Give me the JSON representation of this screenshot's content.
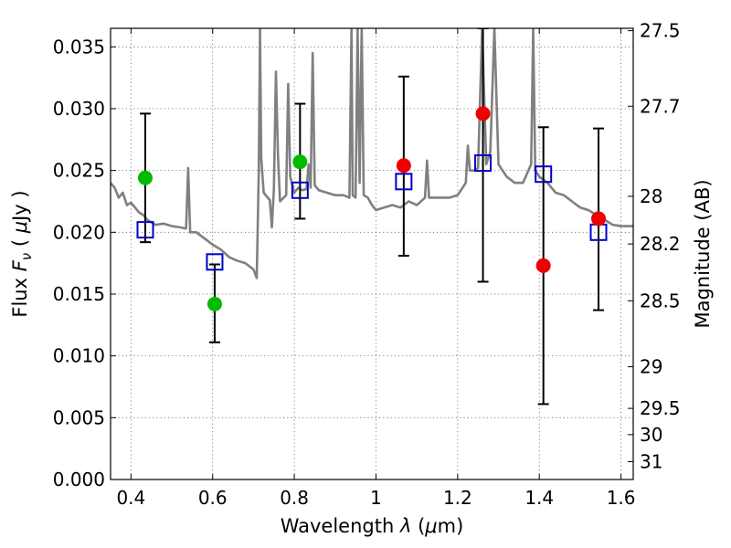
{
  "chart_data": {
    "type": "scatter",
    "title": "",
    "xlabel": "Wavelength  λ (μm)",
    "ylabel": "Flux  F_ν  ( μJy )",
    "ylabel_parts": {
      "a": "Flux  ",
      "b": "F",
      "c": "ν",
      "d": "  ( ",
      "e": "μ",
      "f": "Jy )"
    },
    "xlabel_parts": {
      "a": "Wavelength  ",
      "b": "λ",
      "c": " (",
      "d": "μ",
      "e": "m)"
    },
    "y2label": "Magnitude (AB)",
    "xlim": [
      0.35,
      1.63
    ],
    "ylim": [
      0.0,
      0.0365
    ],
    "grid": true,
    "x_ticks": [
      0.4,
      0.6,
      0.8,
      1.0,
      1.2,
      1.4,
      1.6
    ],
    "x_tick_labels": [
      "0.4",
      "0.6",
      "0.8",
      "1",
      "1.2",
      "1.4",
      "1.6"
    ],
    "y_ticks": [
      0.0,
      0.005,
      0.01,
      0.015,
      0.02,
      0.025,
      0.03,
      0.035
    ],
    "y_tick_labels": [
      "0.000",
      "0.005",
      "0.010",
      "0.015",
      "0.020",
      "0.025",
      "0.030",
      "0.035"
    ],
    "mag_ticks": [
      27.5,
      27.7,
      28,
      28.2,
      28.5,
      29,
      29.5,
      30,
      31
    ],
    "mag_tick_labels": [
      "27.5",
      "27.7",
      "28",
      "28.2",
      "28.5",
      "29",
      "29.5",
      "30",
      "31"
    ],
    "series": [
      {
        "marker": "line",
        "color": "#808080",
        "points": [
          [
            0.35,
            0.024
          ],
          [
            0.36,
            0.0236
          ],
          [
            0.37,
            0.0228
          ],
          [
            0.38,
            0.0232
          ],
          [
            0.39,
            0.0222
          ],
          [
            0.4,
            0.0224
          ],
          [
            0.41,
            0.022
          ],
          [
            0.42,
            0.0216
          ],
          [
            0.43,
            0.0214
          ],
          [
            0.44,
            0.021
          ],
          [
            0.46,
            0.0206
          ],
          [
            0.48,
            0.0207
          ],
          [
            0.5,
            0.0205
          ],
          [
            0.52,
            0.0204
          ],
          [
            0.535,
            0.0203
          ],
          [
            0.54,
            0.0252
          ],
          [
            0.545,
            0.02
          ],
          [
            0.56,
            0.02
          ],
          [
            0.58,
            0.0195
          ],
          [
            0.6,
            0.019
          ],
          [
            0.62,
            0.0186
          ],
          [
            0.64,
            0.018
          ],
          [
            0.66,
            0.0177
          ],
          [
            0.68,
            0.0175
          ],
          [
            0.7,
            0.017
          ],
          [
            0.708,
            0.0163
          ],
          [
            0.713,
            0.025
          ],
          [
            0.716,
            0.0365
          ],
          [
            0.719,
            0.026
          ],
          [
            0.725,
            0.0232
          ],
          [
            0.74,
            0.0226
          ],
          [
            0.745,
            0.0204
          ],
          [
            0.75,
            0.0235
          ],
          [
            0.755,
            0.033
          ],
          [
            0.76,
            0.0262
          ],
          [
            0.765,
            0.0225
          ],
          [
            0.78,
            0.023
          ],
          [
            0.785,
            0.032
          ],
          [
            0.79,
            0.0245
          ],
          [
            0.8,
            0.0232
          ],
          [
            0.81,
            0.0236
          ],
          [
            0.82,
            0.0234
          ],
          [
            0.83,
            0.0235
          ],
          [
            0.835,
            0.0255
          ],
          [
            0.84,
            0.0236
          ],
          [
            0.845,
            0.0345
          ],
          [
            0.85,
            0.0238
          ],
          [
            0.86,
            0.0234
          ],
          [
            0.88,
            0.0232
          ],
          [
            0.9,
            0.023
          ],
          [
            0.92,
            0.023
          ],
          [
            0.935,
            0.0228
          ],
          [
            0.94,
            0.0365
          ],
          [
            0.943,
            0.023
          ],
          [
            0.95,
            0.0228
          ],
          [
            0.955,
            0.0365
          ],
          [
            0.96,
            0.024
          ],
          [
            0.965,
            0.0365
          ],
          [
            0.97,
            0.023
          ],
          [
            0.98,
            0.0228
          ],
          [
            0.99,
            0.0222
          ],
          [
            1.0,
            0.0218
          ],
          [
            1.02,
            0.022
          ],
          [
            1.04,
            0.0222
          ],
          [
            1.06,
            0.022
          ],
          [
            1.08,
            0.0225
          ],
          [
            1.1,
            0.0222
          ],
          [
            1.12,
            0.0228
          ],
          [
            1.125,
            0.0258
          ],
          [
            1.13,
            0.0228
          ],
          [
            1.15,
            0.0228
          ],
          [
            1.18,
            0.0228
          ],
          [
            1.2,
            0.023
          ],
          [
            1.22,
            0.024
          ],
          [
            1.225,
            0.027
          ],
          [
            1.23,
            0.025
          ],
          [
            1.24,
            0.025
          ],
          [
            1.25,
            0.0252
          ],
          [
            1.26,
            0.0365
          ],
          [
            1.27,
            0.0255
          ],
          [
            1.28,
            0.0265
          ],
          [
            1.29,
            0.0365
          ],
          [
            1.3,
            0.0255
          ],
          [
            1.32,
            0.0245
          ],
          [
            1.34,
            0.024
          ],
          [
            1.36,
            0.024
          ],
          [
            1.38,
            0.0255
          ],
          [
            1.385,
            0.0365
          ],
          [
            1.39,
            0.025
          ],
          [
            1.4,
            0.0245
          ],
          [
            1.42,
            0.024
          ],
          [
            1.44,
            0.0232
          ],
          [
            1.46,
            0.023
          ],
          [
            1.48,
            0.0225
          ],
          [
            1.5,
            0.022
          ],
          [
            1.52,
            0.0218
          ],
          [
            1.54,
            0.0214
          ],
          [
            1.56,
            0.021
          ],
          [
            1.58,
            0.0206
          ],
          [
            1.6,
            0.0205
          ],
          [
            1.63,
            0.0205
          ]
        ]
      },
      {
        "marker": "square",
        "color": "#0000cc",
        "points": [
          [
            0.435,
            0.0202
          ],
          [
            0.605,
            0.0176
          ],
          [
            0.814,
            0.0234
          ],
          [
            1.068,
            0.0241
          ],
          [
            1.262,
            0.0256
          ],
          [
            1.41,
            0.0247
          ],
          [
            1.545,
            0.02
          ]
        ]
      },
      {
        "marker": "circle",
        "color": "#00bb00",
        "points": [
          [
            0.435,
            0.0244
          ],
          [
            0.605,
            0.0142
          ],
          [
            0.814,
            0.0257
          ]
        ]
      },
      {
        "marker": "circle",
        "color": "#ee0000",
        "points": [
          [
            1.068,
            0.0254
          ],
          [
            1.262,
            0.0296
          ],
          [
            1.41,
            0.0173
          ],
          [
            1.545,
            0.0211
          ]
        ]
      }
    ],
    "error_bars": [
      {
        "x": 0.435,
        "low": 0.0192,
        "high": 0.0296
      },
      {
        "x": 0.605,
        "low": 0.0111,
        "high": 0.0174
      },
      {
        "x": 0.814,
        "low": 0.0211,
        "high": 0.0304
      },
      {
        "x": 1.068,
        "low": 0.0181,
        "high": 0.0326
      },
      {
        "x": 1.262,
        "low": 0.016,
        "high": 0.0365
      },
      {
        "x": 1.41,
        "low": 0.0061,
        "high": 0.0285
      },
      {
        "x": 1.545,
        "low": 0.0137,
        "high": 0.0284
      }
    ]
  }
}
